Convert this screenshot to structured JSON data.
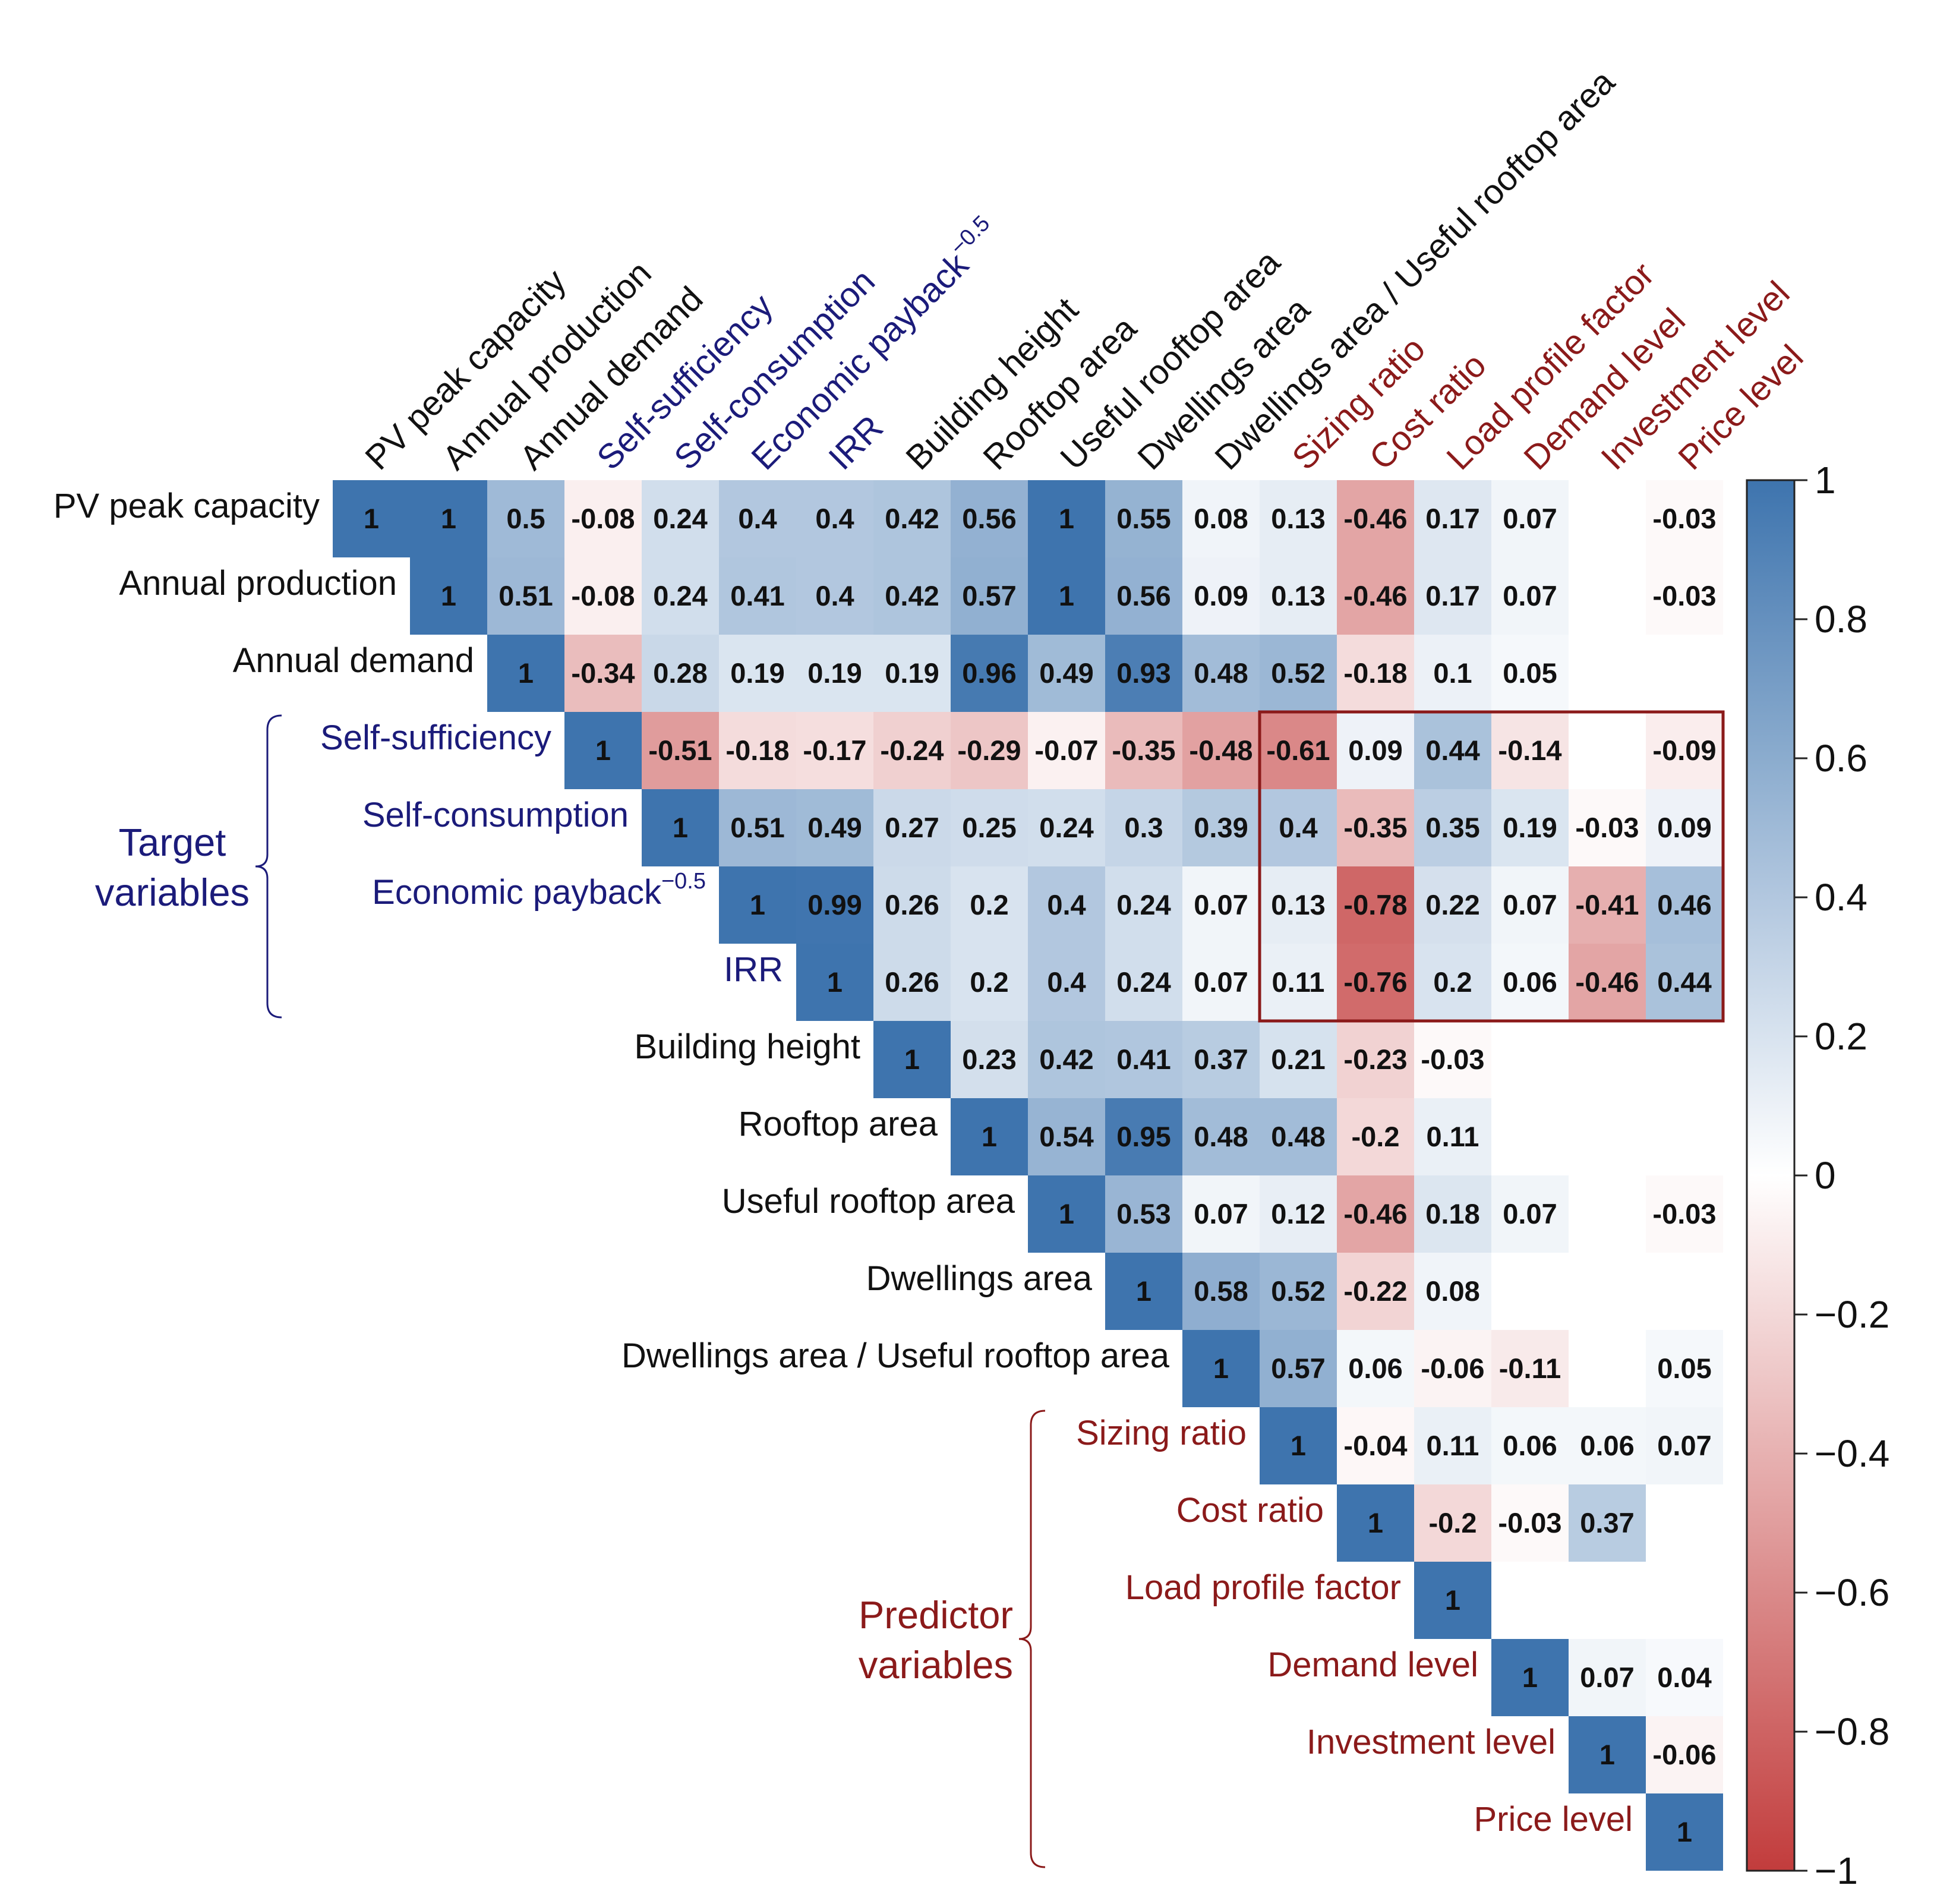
{
  "chart_data": {
    "type": "heatmap",
    "title": "",
    "variables": [
      "PV peak capacity",
      "Annual production",
      "Annual demand",
      "Self-sufficiency",
      "Self-consumption",
      "Economic payback",
      "IRR",
      "Building height",
      "Rooftop area",
      "Useful rooftop area",
      "Dwellings area",
      "Dwellings area / Useful rooftop area",
      "Sizing ratio",
      "Cost ratio",
      "Load profile factor",
      "Demand level",
      "Investment level",
      "Price level"
    ],
    "label_superscript": {
      "variable": "Economic payback",
      "text": "−0.5"
    },
    "label_groups": {
      "black": [
        "PV peak capacity",
        "Annual production",
        "Annual demand",
        "Building height",
        "Rooftop area",
        "Useful rooftop area",
        "Dwellings area",
        "Dwellings area / Useful rooftop area"
      ],
      "target": [
        "Self-sufficiency",
        "Self-consumption",
        "Economic payback",
        "IRR"
      ],
      "predictor": [
        "Sizing ratio",
        "Cost ratio",
        "Load profile factor",
        "Demand level",
        "Investment level",
        "Price level"
      ]
    },
    "matrix": [
      [
        1,
        1,
        0.5,
        -0.08,
        0.24,
        0.4,
        0.4,
        0.42,
        0.56,
        1,
        0.55,
        0.08,
        0.13,
        -0.46,
        0.17,
        0.07,
        null,
        -0.03
      ],
      [
        null,
        1,
        0.51,
        -0.08,
        0.24,
        0.41,
        0.4,
        0.42,
        0.57,
        1,
        0.56,
        0.09,
        0.13,
        -0.46,
        0.17,
        0.07,
        null,
        -0.03
      ],
      [
        null,
        null,
        1,
        -0.34,
        0.28,
        0.19,
        0.19,
        0.19,
        0.96,
        0.49,
        0.93,
        0.48,
        0.52,
        -0.18,
        0.1,
        0.05,
        null,
        null
      ],
      [
        null,
        null,
        null,
        1,
        -0.51,
        -0.18,
        -0.17,
        -0.24,
        -0.29,
        -0.07,
        -0.35,
        -0.48,
        -0.61,
        0.09,
        0.44,
        -0.14,
        null,
        -0.09
      ],
      [
        null,
        null,
        null,
        null,
        1,
        0.51,
        0.49,
        0.27,
        0.25,
        0.24,
        0.3,
        0.39,
        0.4,
        -0.35,
        0.35,
        0.19,
        -0.03,
        0.09
      ],
      [
        null,
        null,
        null,
        null,
        null,
        1,
        0.99,
        0.26,
        0.2,
        0.4,
        0.24,
        0.07,
        0.13,
        -0.78,
        0.22,
        0.07,
        -0.41,
        0.46
      ],
      [
        null,
        null,
        null,
        null,
        null,
        null,
        1,
        0.26,
        0.2,
        0.4,
        0.24,
        0.07,
        0.11,
        -0.76,
        0.2,
        0.06,
        -0.46,
        0.44
      ],
      [
        null,
        null,
        null,
        null,
        null,
        null,
        null,
        1,
        0.23,
        0.42,
        0.41,
        0.37,
        0.21,
        -0.23,
        -0.03,
        null,
        null,
        null
      ],
      [
        null,
        null,
        null,
        null,
        null,
        null,
        null,
        null,
        1,
        0.54,
        0.95,
        0.48,
        0.48,
        -0.2,
        0.11,
        null,
        null,
        null
      ],
      [
        null,
        null,
        null,
        null,
        null,
        null,
        null,
        null,
        null,
        1,
        0.53,
        0.07,
        0.12,
        -0.46,
        0.18,
        0.07,
        null,
        -0.03
      ],
      [
        null,
        null,
        null,
        null,
        null,
        null,
        null,
        null,
        null,
        null,
        1,
        0.58,
        0.52,
        -0.22,
        0.08,
        null,
        null,
        null
      ],
      [
        null,
        null,
        null,
        null,
        null,
        null,
        null,
        null,
        null,
        null,
        null,
        1,
        0.57,
        0.06,
        -0.06,
        -0.11,
        null,
        0.05
      ],
      [
        null,
        null,
        null,
        null,
        null,
        null,
        null,
        null,
        null,
        null,
        null,
        null,
        1,
        -0.04,
        0.11,
        0.06,
        0.06,
        0.07
      ],
      [
        null,
        null,
        null,
        null,
        null,
        null,
        null,
        null,
        null,
        null,
        null,
        null,
        null,
        1,
        -0.2,
        -0.03,
        0.37,
        null
      ],
      [
        null,
        null,
        null,
        null,
        null,
        null,
        null,
        null,
        null,
        null,
        null,
        null,
        null,
        null,
        1,
        null,
        null,
        null
      ],
      [
        null,
        null,
        null,
        null,
        null,
        null,
        null,
        null,
        null,
        null,
        null,
        null,
        null,
        null,
        null,
        1,
        0.07,
        0.04
      ],
      [
        null,
        null,
        null,
        null,
        null,
        null,
        null,
        null,
        null,
        null,
        null,
        null,
        null,
        null,
        null,
        null,
        1,
        -0.06
      ],
      [
        null,
        null,
        null,
        null,
        null,
        null,
        null,
        null,
        null,
        null,
        null,
        null,
        null,
        null,
        null,
        null,
        null,
        1
      ]
    ],
    "highlight_box": {
      "rows": [
        "Self-sufficiency",
        "IRR"
      ],
      "cols": [
        "Sizing ratio",
        "Price level"
      ]
    },
    "groups": [
      {
        "name": "Target variables",
        "lines": [
          "Target",
          "variables"
        ],
        "members": [
          "Self-sufficiency",
          "IRR"
        ]
      },
      {
        "name": "Predictor variables",
        "lines": [
          "Predictor",
          "variables"
        ],
        "members": [
          "Sizing ratio",
          "Price level"
        ]
      }
    ],
    "colorbar": {
      "range": [
        -1,
        1
      ],
      "ticks": [
        1,
        0.8,
        0.6,
        0.4,
        0.2,
        0,
        -0.2,
        -0.4,
        -0.6,
        -0.8,
        -1
      ],
      "tick_labels": [
        "1",
        "0.8",
        "0.6",
        "0.4",
        "0.2",
        "0",
        "−0.2",
        "−0.4",
        "−0.6",
        "−0.8",
        "−1"
      ]
    },
    "colors": {
      "positive": "#3e74ae",
      "negative": "#c23c3c",
      "neutral": "#ffffff",
      "label_black": "#111111",
      "label_target": "#1b1b7a",
      "label_predictor": "#8b1a1a",
      "highlight_box": "#8b1a1a"
    }
  }
}
